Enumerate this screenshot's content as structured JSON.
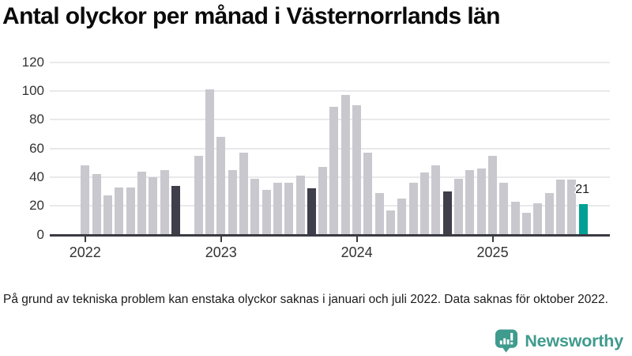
{
  "chart_data": {
    "type": "bar",
    "title": "Antal olyckor per månad i Västernorrlands län",
    "x_months": [
      "2022-01",
      "2022-02",
      "2022-03",
      "2022-04",
      "2022-05",
      "2022-06",
      "2022-07",
      "2022-08",
      "2022-09",
      "2022-10",
      "2022-11",
      "2022-12",
      "2023-01",
      "2023-02",
      "2023-03",
      "2023-04",
      "2023-05",
      "2023-06",
      "2023-07",
      "2023-08",
      "2023-09",
      "2023-10",
      "2023-11",
      "2023-12",
      "2024-01",
      "2024-02",
      "2024-03",
      "2024-04",
      "2024-05",
      "2024-06",
      "2024-07",
      "2024-08",
      "2024-09",
      "2024-10",
      "2024-11",
      "2024-12",
      "2025-01",
      "2025-02",
      "2025-03",
      "2025-04",
      "2025-05",
      "2025-06",
      "2025-07",
      "2025-08",
      "2025-09"
    ],
    "values": [
      48,
      42,
      27,
      33,
      33,
      44,
      40,
      45,
      34,
      null,
      55,
      101,
      68,
      45,
      57,
      39,
      31,
      36,
      36,
      41,
      32,
      47,
      89,
      97,
      90,
      57,
      29,
      17,
      25,
      36,
      43,
      48,
      30,
      39,
      45,
      46,
      55,
      36,
      23,
      15,
      22,
      29,
      38,
      38,
      21
    ],
    "missing_months": [
      "2022-10"
    ],
    "highlight_color_indices": [
      8,
      20,
      32
    ],
    "latest_index": 44,
    "value_labels": [
      {
        "index": 44,
        "text": "21"
      }
    ],
    "yticks": [
      0,
      20,
      40,
      60,
      80,
      100,
      120
    ],
    "ylim": [
      0,
      120
    ],
    "xticks": [
      {
        "label": "2022",
        "index": 0
      },
      {
        "label": "2023",
        "index": 12
      },
      {
        "label": "2024",
        "index": 24
      },
      {
        "label": "2025",
        "index": 36
      }
    ],
    "grid": "horizontal-only",
    "legend": "none",
    "colors": {
      "bar": "#c9c8ce",
      "highlight": "#3f3e4b",
      "latest": "#00a094",
      "axis": "#3a3a43",
      "gridline": "#e9e9eb"
    }
  },
  "footnote": "På grund av tekniska problem kan enstaka olyckor saknas i januari och juli 2022. Data saknas för oktober 2022.",
  "branding": {
    "logo_text": "Newsworthy",
    "logo_icon": "newsworthy-speech-bubble-bar-chart-icon",
    "logo_color": "#3f9b8e"
  }
}
